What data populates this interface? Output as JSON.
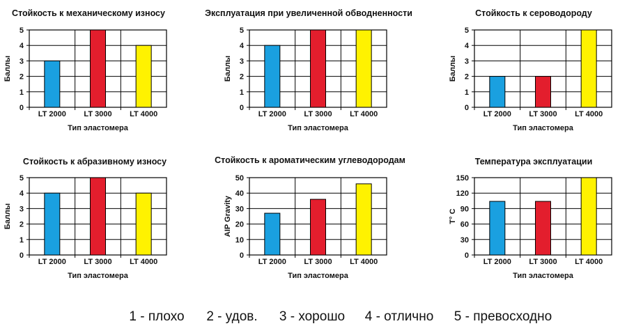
{
  "chart_data": [
    {
      "type": "bar",
      "title": "Стойкость к механическому износу",
      "categories": [
        "LT 2000",
        "LT 3000",
        "LT 4000"
      ],
      "values": [
        3,
        5,
        4
      ],
      "xlabel": "Тип эластомера",
      "ylabel": "Баллы",
      "ylim": [
        0,
        5
      ],
      "yticks": [
        0,
        1,
        2,
        3,
        4,
        5
      ],
      "grid": true
    },
    {
      "type": "bar",
      "title": "Эксплуатация при увеличенной обводненности",
      "categories": [
        "LT 2000",
        "LT 3000",
        "LT 4000"
      ],
      "values": [
        4,
        5,
        5
      ],
      "xlabel": "Тип эластомера",
      "ylabel": "Баллы",
      "ylim": [
        0,
        5
      ],
      "yticks": [
        0,
        1,
        2,
        3,
        4,
        5
      ],
      "grid": true
    },
    {
      "type": "bar",
      "title": "Стойкость к сероводороду",
      "categories": [
        "LT 2000",
        "LT 3000",
        "LT 4000"
      ],
      "values": [
        2,
        2,
        5
      ],
      "xlabel": "Тип эластомера",
      "ylabel": "Баллы",
      "ylim": [
        0,
        5
      ],
      "yticks": [
        0,
        1,
        2,
        3,
        4,
        5
      ],
      "grid": true
    },
    {
      "type": "bar",
      "title": "Стойкость к абразивному износу",
      "categories": [
        "LT 2000",
        "LT 3000",
        "LT 4000"
      ],
      "values": [
        4,
        5,
        4
      ],
      "xlabel": "Тип эластомера",
      "ylabel": "Баллы",
      "ylim": [
        0,
        5
      ],
      "yticks": [
        0,
        1,
        2,
        3,
        4,
        5
      ],
      "grid": true
    },
    {
      "type": "bar",
      "title": "Стойкость к ароматическим углеводородам",
      "categories": [
        "LT 2000",
        "LT 3000",
        "LT 4000"
      ],
      "values": [
        27,
        36,
        46
      ],
      "xlabel": "Тип эластомера",
      "ylabel": "AIP Gravity",
      "ylim": [
        0,
        50
      ],
      "yticks": [
        0,
        10,
        20,
        30,
        40,
        50
      ],
      "grid": true
    },
    {
      "type": "bar",
      "title": "Температура эксплуатации",
      "categories": [
        "LT 2000",
        "LT 3000",
        "LT 4000"
      ],
      "values": [
        104,
        104,
        150
      ],
      "xlabel": "Тип эластомера",
      "ylabel": "T° C",
      "ylim": [
        0,
        150
      ],
      "yticks": [
        0,
        30,
        60,
        90,
        120,
        150
      ],
      "grid": true
    }
  ],
  "colors": {
    "LT 2000": "#1aa0e0",
    "LT 3000": "#e31e2d",
    "LT 4000": "#fff200"
  },
  "legend": [
    {
      "text": "1 - плохо"
    },
    {
      "text": "2 - удов."
    },
    {
      "text": "3 - хорошо"
    },
    {
      "text": "4 - отлично"
    },
    {
      "text": "5 - превосходно"
    }
  ]
}
